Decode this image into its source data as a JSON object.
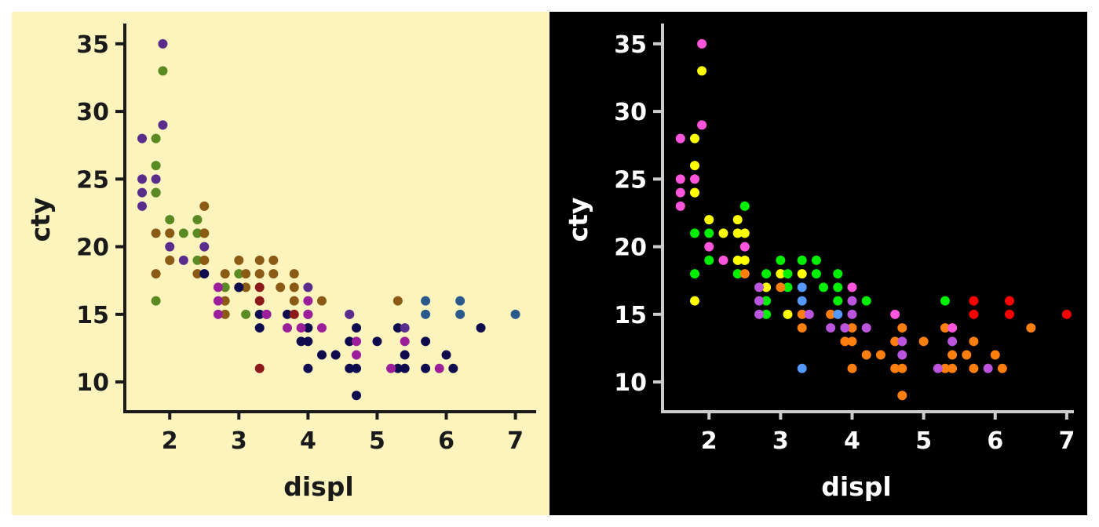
{
  "chart_data": [
    {
      "type": "scatter",
      "xlabel": "displ",
      "ylabel": "cty",
      "xlim": [
        1.35,
        7.3
      ],
      "ylim": [
        7.8,
        36.5
      ],
      "xticks": [
        2,
        3,
        4,
        5,
        6,
        7
      ],
      "yticks": [
        10,
        15,
        20,
        25,
        30,
        35
      ],
      "theme": {
        "background": "#fdf3bd",
        "axis": "#1a1a1a",
        "text": "#1a1a1a"
      },
      "points": [
        {
          "x": 1.6,
          "y": 28,
          "color": "#5a2d8c"
        },
        {
          "x": 1.6,
          "y": 25,
          "color": "#5a2d8c"
        },
        {
          "x": 1.6,
          "y": 24,
          "color": "#5a2d8c"
        },
        {
          "x": 1.6,
          "y": 23,
          "color": "#5a2d8c"
        },
        {
          "x": 1.8,
          "y": 25,
          "color": "#5a2d8c"
        },
        {
          "x": 1.8,
          "y": 24,
          "color": "#5a2d8c"
        },
        {
          "x": 1.9,
          "y": 35,
          "color": "#5a2d8c"
        },
        {
          "x": 1.9,
          "y": 29,
          "color": "#5a2d8c"
        },
        {
          "x": 2.0,
          "y": 20,
          "color": "#5a2d8c"
        },
        {
          "x": 2.2,
          "y": 19,
          "color": "#5a2d8c"
        },
        {
          "x": 2.5,
          "y": 20,
          "color": "#5a2d8c"
        },
        {
          "x": 1.9,
          "y": 33,
          "color": "#5b8a22"
        },
        {
          "x": 1.8,
          "y": 28,
          "color": "#5b8a22"
        },
        {
          "x": 1.8,
          "y": 26,
          "color": "#5b8a22"
        },
        {
          "x": 1.8,
          "y": 24,
          "color": "#5b8a22"
        },
        {
          "x": 1.8,
          "y": 16,
          "color": "#5b8a22"
        },
        {
          "x": 2.0,
          "y": 22,
          "color": "#5b8a22"
        },
        {
          "x": 2.0,
          "y": 21,
          "color": "#5b8a22"
        },
        {
          "x": 2.0,
          "y": 19,
          "color": "#5b8a22"
        },
        {
          "x": 2.2,
          "y": 21,
          "color": "#5b8a22"
        },
        {
          "x": 2.4,
          "y": 22,
          "color": "#5b8a22"
        },
        {
          "x": 2.4,
          "y": 21,
          "color": "#5b8a22"
        },
        {
          "x": 2.4,
          "y": 19,
          "color": "#5b8a22"
        },
        {
          "x": 2.5,
          "y": 21,
          "color": "#5b8a22"
        },
        {
          "x": 2.5,
          "y": 19,
          "color": "#5b8a22"
        },
        {
          "x": 2.8,
          "y": 17,
          "color": "#5b8a22"
        },
        {
          "x": 3.0,
          "y": 18,
          "color": "#5b8a22"
        },
        {
          "x": 3.1,
          "y": 15,
          "color": "#5b8a22"
        },
        {
          "x": 1.8,
          "y": 21,
          "color": "#8b5a14"
        },
        {
          "x": 1.8,
          "y": 18,
          "color": "#8b5a14"
        },
        {
          "x": 2.0,
          "y": 21,
          "color": "#8b5a14"
        },
        {
          "x": 2.0,
          "y": 19,
          "color": "#8b5a14"
        },
        {
          "x": 2.4,
          "y": 18,
          "color": "#8b5a14"
        },
        {
          "x": 2.5,
          "y": 23,
          "color": "#8b5a14"
        },
        {
          "x": 2.5,
          "y": 21,
          "color": "#8b5a14"
        },
        {
          "x": 2.5,
          "y": 19,
          "color": "#8b5a14"
        },
        {
          "x": 2.8,
          "y": 18,
          "color": "#8b5a14"
        },
        {
          "x": 2.8,
          "y": 16,
          "color": "#8b5a14"
        },
        {
          "x": 2.8,
          "y": 15,
          "color": "#8b5a14"
        },
        {
          "x": 3.0,
          "y": 19,
          "color": "#8b5a14"
        },
        {
          "x": 3.0,
          "y": 17,
          "color": "#8b5a14"
        },
        {
          "x": 3.1,
          "y": 18,
          "color": "#8b5a14"
        },
        {
          "x": 3.1,
          "y": 17,
          "color": "#8b5a14"
        },
        {
          "x": 3.3,
          "y": 19,
          "color": "#8b5a14"
        },
        {
          "x": 3.3,
          "y": 18,
          "color": "#8b5a14"
        },
        {
          "x": 3.5,
          "y": 19,
          "color": "#8b5a14"
        },
        {
          "x": 3.5,
          "y": 18,
          "color": "#8b5a14"
        },
        {
          "x": 3.6,
          "y": 17,
          "color": "#8b5a14"
        },
        {
          "x": 3.8,
          "y": 18,
          "color": "#8b5a14"
        },
        {
          "x": 3.8,
          "y": 17,
          "color": "#8b5a14"
        },
        {
          "x": 3.8,
          "y": 16,
          "color": "#8b5a14"
        },
        {
          "x": 4.2,
          "y": 16,
          "color": "#8b5a14"
        },
        {
          "x": 5.3,
          "y": 16,
          "color": "#8b5a14"
        },
        {
          "x": 2.5,
          "y": 18,
          "color": "#0e0c4f"
        },
        {
          "x": 3.0,
          "y": 17,
          "color": "#0e0c4f"
        },
        {
          "x": 3.3,
          "y": 15,
          "color": "#0e0c4f"
        },
        {
          "x": 3.3,
          "y": 14,
          "color": "#0e0c4f"
        },
        {
          "x": 3.4,
          "y": 15,
          "color": "#0e0c4f"
        },
        {
          "x": 3.7,
          "y": 15,
          "color": "#0e0c4f"
        },
        {
          "x": 3.9,
          "y": 13,
          "color": "#0e0c4f"
        },
        {
          "x": 4.0,
          "y": 15,
          "color": "#0e0c4f"
        },
        {
          "x": 4.0,
          "y": 14,
          "color": "#0e0c4f"
        },
        {
          "x": 4.0,
          "y": 13,
          "color": "#0e0c4f"
        },
        {
          "x": 4.0,
          "y": 11,
          "color": "#0e0c4f"
        },
        {
          "x": 4.2,
          "y": 12,
          "color": "#0e0c4f"
        },
        {
          "x": 4.4,
          "y": 12,
          "color": "#0e0c4f"
        },
        {
          "x": 4.6,
          "y": 13,
          "color": "#0e0c4f"
        },
        {
          "x": 4.6,
          "y": 11,
          "color": "#0e0c4f"
        },
        {
          "x": 4.7,
          "y": 14,
          "color": "#0e0c4f"
        },
        {
          "x": 4.7,
          "y": 11,
          "color": "#0e0c4f"
        },
        {
          "x": 4.7,
          "y": 9,
          "color": "#0e0c4f"
        },
        {
          "x": 5.0,
          "y": 13,
          "color": "#0e0c4f"
        },
        {
          "x": 5.3,
          "y": 14,
          "color": "#0e0c4f"
        },
        {
          "x": 5.3,
          "y": 11,
          "color": "#0e0c4f"
        },
        {
          "x": 5.4,
          "y": 12,
          "color": "#0e0c4f"
        },
        {
          "x": 5.4,
          "y": 11,
          "color": "#0e0c4f"
        },
        {
          "x": 5.7,
          "y": 13,
          "color": "#0e0c4f"
        },
        {
          "x": 5.7,
          "y": 11,
          "color": "#0e0c4f"
        },
        {
          "x": 6.0,
          "y": 12,
          "color": "#0e0c4f"
        },
        {
          "x": 6.1,
          "y": 11,
          "color": "#0e0c4f"
        },
        {
          "x": 6.5,
          "y": 14,
          "color": "#0e0c4f"
        },
        {
          "x": 2.7,
          "y": 17,
          "color": "#9b1e9b"
        },
        {
          "x": 2.7,
          "y": 16,
          "color": "#9b1e9b"
        },
        {
          "x": 2.7,
          "y": 15,
          "color": "#9b1e9b"
        },
        {
          "x": 3.4,
          "y": 15,
          "color": "#9b1e9b"
        },
        {
          "x": 3.7,
          "y": 14,
          "color": "#9b1e9b"
        },
        {
          "x": 3.9,
          "y": 14,
          "color": "#9b1e9b"
        },
        {
          "x": 4.0,
          "y": 16,
          "color": "#9b1e9b"
        },
        {
          "x": 4.0,
          "y": 15,
          "color": "#9b1e9b"
        },
        {
          "x": 4.2,
          "y": 14,
          "color": "#9b1e9b"
        },
        {
          "x": 4.6,
          "y": 15,
          "color": "#9b1e9b"
        },
        {
          "x": 4.7,
          "y": 13,
          "color": "#9b1e9b"
        },
        {
          "x": 4.7,
          "y": 12,
          "color": "#9b1e9b"
        },
        {
          "x": 5.2,
          "y": 11,
          "color": "#9b1e9b"
        },
        {
          "x": 5.4,
          "y": 13,
          "color": "#9b1e9b"
        },
        {
          "x": 5.9,
          "y": 11,
          "color": "#9b1e9b"
        },
        {
          "x": 3.3,
          "y": 17,
          "color": "#8c1a1a"
        },
        {
          "x": 3.3,
          "y": 16,
          "color": "#8c1a1a"
        },
        {
          "x": 3.3,
          "y": 11,
          "color": "#8c1a1a"
        },
        {
          "x": 3.8,
          "y": 15,
          "color": "#8c1a1a"
        },
        {
          "x": 4.0,
          "y": 17,
          "color": "#5a2d8c"
        },
        {
          "x": 4.6,
          "y": 15,
          "color": "#5a2d8c"
        },
        {
          "x": 5.4,
          "y": 14,
          "color": "#5a2d8c"
        },
        {
          "x": 5.7,
          "y": 16,
          "color": "#2a5a8c"
        },
        {
          "x": 5.7,
          "y": 15,
          "color": "#2a5a8c"
        },
        {
          "x": 6.2,
          "y": 16,
          "color": "#2a5a8c"
        },
        {
          "x": 6.2,
          "y": 15,
          "color": "#2a5a8c"
        },
        {
          "x": 7.0,
          "y": 15,
          "color": "#2a5a8c"
        }
      ]
    },
    {
      "type": "scatter",
      "xlabel": "displ",
      "ylabel": "cty",
      "xlim": [
        1.35,
        7.1
      ],
      "ylim": [
        7.8,
        36.5
      ],
      "xticks": [
        2,
        3,
        4,
        5,
        6,
        7
      ],
      "yticks": [
        10,
        15,
        20,
        25,
        30,
        35
      ],
      "theme": {
        "background": "#000000",
        "axis": "#cccccc",
        "text": "#ffffff"
      },
      "points": [
        {
          "x": 1.6,
          "y": 28,
          "color": "#ff55dd"
        },
        {
          "x": 1.6,
          "y": 25,
          "color": "#ff55dd"
        },
        {
          "x": 1.6,
          "y": 24,
          "color": "#ff55dd"
        },
        {
          "x": 1.6,
          "y": 23,
          "color": "#ff55dd"
        },
        {
          "x": 1.8,
          "y": 25,
          "color": "#ff55dd"
        },
        {
          "x": 1.8,
          "y": 24,
          "color": "#ff55dd"
        },
        {
          "x": 1.9,
          "y": 35,
          "color": "#ff55dd"
        },
        {
          "x": 1.9,
          "y": 29,
          "color": "#ff55dd"
        },
        {
          "x": 2.0,
          "y": 20,
          "color": "#ff55dd"
        },
        {
          "x": 2.2,
          "y": 19,
          "color": "#ff55dd"
        },
        {
          "x": 2.5,
          "y": 20,
          "color": "#ff55dd"
        },
        {
          "x": 1.9,
          "y": 33,
          "color": "#ffff00"
        },
        {
          "x": 1.8,
          "y": 28,
          "color": "#ffff00"
        },
        {
          "x": 1.8,
          "y": 26,
          "color": "#ffff00"
        },
        {
          "x": 1.8,
          "y": 24,
          "color": "#ffff00"
        },
        {
          "x": 1.8,
          "y": 16,
          "color": "#ffff00"
        },
        {
          "x": 2.0,
          "y": 22,
          "color": "#ffff00"
        },
        {
          "x": 2.2,
          "y": 21,
          "color": "#ffff00"
        },
        {
          "x": 2.4,
          "y": 22,
          "color": "#ffff00"
        },
        {
          "x": 2.4,
          "y": 21,
          "color": "#ffff00"
        },
        {
          "x": 2.4,
          "y": 19,
          "color": "#ffff00"
        },
        {
          "x": 2.5,
          "y": 21,
          "color": "#ffff00"
        },
        {
          "x": 2.5,
          "y": 19,
          "color": "#ffff00"
        },
        {
          "x": 2.8,
          "y": 17,
          "color": "#ffff00"
        },
        {
          "x": 3.0,
          "y": 18,
          "color": "#ffff00"
        },
        {
          "x": 3.1,
          "y": 15,
          "color": "#ffff00"
        },
        {
          "x": 3.3,
          "y": 18,
          "color": "#ffff00"
        },
        {
          "x": 1.8,
          "y": 21,
          "color": "#00ee00"
        },
        {
          "x": 1.8,
          "y": 18,
          "color": "#00ee00"
        },
        {
          "x": 2.0,
          "y": 21,
          "color": "#00ee00"
        },
        {
          "x": 2.0,
          "y": 19,
          "color": "#00ee00"
        },
        {
          "x": 2.4,
          "y": 18,
          "color": "#00ee00"
        },
        {
          "x": 2.5,
          "y": 23,
          "color": "#00ee00"
        },
        {
          "x": 2.8,
          "y": 18,
          "color": "#00ee00"
        },
        {
          "x": 2.8,
          "y": 16,
          "color": "#00ee00"
        },
        {
          "x": 2.8,
          "y": 15,
          "color": "#00ee00"
        },
        {
          "x": 3.0,
          "y": 19,
          "color": "#00ee00"
        },
        {
          "x": 3.1,
          "y": 18,
          "color": "#00ee00"
        },
        {
          "x": 3.1,
          "y": 17,
          "color": "#00ee00"
        },
        {
          "x": 3.3,
          "y": 19,
          "color": "#00ee00"
        },
        {
          "x": 3.5,
          "y": 19,
          "color": "#00ee00"
        },
        {
          "x": 3.5,
          "y": 18,
          "color": "#00ee00"
        },
        {
          "x": 3.6,
          "y": 17,
          "color": "#00ee00"
        },
        {
          "x": 3.8,
          "y": 18,
          "color": "#00ee00"
        },
        {
          "x": 3.8,
          "y": 17,
          "color": "#00ee00"
        },
        {
          "x": 3.8,
          "y": 16,
          "color": "#00ee00"
        },
        {
          "x": 4.2,
          "y": 16,
          "color": "#00ee00"
        },
        {
          "x": 5.3,
          "y": 16,
          "color": "#00ee00"
        },
        {
          "x": 2.5,
          "y": 18,
          "color": "#ff7f0e"
        },
        {
          "x": 3.0,
          "y": 17,
          "color": "#ff7f0e"
        },
        {
          "x": 3.3,
          "y": 15,
          "color": "#ff7f0e"
        },
        {
          "x": 3.3,
          "y": 14,
          "color": "#ff7f0e"
        },
        {
          "x": 3.7,
          "y": 15,
          "color": "#ff7f0e"
        },
        {
          "x": 3.9,
          "y": 13,
          "color": "#ff7f0e"
        },
        {
          "x": 4.0,
          "y": 14,
          "color": "#ff7f0e"
        },
        {
          "x": 4.0,
          "y": 13,
          "color": "#ff7f0e"
        },
        {
          "x": 4.0,
          "y": 11,
          "color": "#ff7f0e"
        },
        {
          "x": 4.2,
          "y": 12,
          "color": "#ff7f0e"
        },
        {
          "x": 4.4,
          "y": 12,
          "color": "#ff7f0e"
        },
        {
          "x": 4.6,
          "y": 13,
          "color": "#ff7f0e"
        },
        {
          "x": 4.6,
          "y": 11,
          "color": "#ff7f0e"
        },
        {
          "x": 4.7,
          "y": 14,
          "color": "#ff7f0e"
        },
        {
          "x": 4.7,
          "y": 11,
          "color": "#ff7f0e"
        },
        {
          "x": 4.7,
          "y": 9,
          "color": "#ff7f0e"
        },
        {
          "x": 5.0,
          "y": 13,
          "color": "#ff7f0e"
        },
        {
          "x": 5.3,
          "y": 14,
          "color": "#ff7f0e"
        },
        {
          "x": 5.3,
          "y": 11,
          "color": "#ff7f0e"
        },
        {
          "x": 5.4,
          "y": 12,
          "color": "#ff7f0e"
        },
        {
          "x": 5.4,
          "y": 11,
          "color": "#ff7f0e"
        },
        {
          "x": 5.7,
          "y": 13,
          "color": "#ff7f0e"
        },
        {
          "x": 5.7,
          "y": 11,
          "color": "#ff7f0e"
        },
        {
          "x": 6.0,
          "y": 12,
          "color": "#ff7f0e"
        },
        {
          "x": 6.1,
          "y": 11,
          "color": "#ff7f0e"
        },
        {
          "x": 6.5,
          "y": 14,
          "color": "#ff7f0e"
        },
        {
          "x": 5.6,
          "y": 12,
          "color": "#ff7f0e"
        },
        {
          "x": 2.7,
          "y": 17,
          "color": "#bb55dd"
        },
        {
          "x": 2.7,
          "y": 16,
          "color": "#bb55dd"
        },
        {
          "x": 2.7,
          "y": 15,
          "color": "#bb55dd"
        },
        {
          "x": 3.4,
          "y": 15,
          "color": "#bb55dd"
        },
        {
          "x": 3.7,
          "y": 14,
          "color": "#bb55dd"
        },
        {
          "x": 3.9,
          "y": 14,
          "color": "#bb55dd"
        },
        {
          "x": 4.0,
          "y": 16,
          "color": "#bb55dd"
        },
        {
          "x": 4.0,
          "y": 15,
          "color": "#bb55dd"
        },
        {
          "x": 4.2,
          "y": 14,
          "color": "#bb55dd"
        },
        {
          "x": 4.7,
          "y": 13,
          "color": "#bb55dd"
        },
        {
          "x": 4.7,
          "y": 12,
          "color": "#bb55dd"
        },
        {
          "x": 5.2,
          "y": 11,
          "color": "#bb55dd"
        },
        {
          "x": 5.4,
          "y": 13,
          "color": "#bb55dd"
        },
        {
          "x": 5.9,
          "y": 11,
          "color": "#bb55dd"
        },
        {
          "x": 4.0,
          "y": 17,
          "color": "#ff55dd"
        },
        {
          "x": 4.6,
          "y": 15,
          "color": "#ff55dd"
        },
        {
          "x": 5.4,
          "y": 14,
          "color": "#ff55dd"
        },
        {
          "x": 3.3,
          "y": 17,
          "color": "#5599ff"
        },
        {
          "x": 3.3,
          "y": 16,
          "color": "#5599ff"
        },
        {
          "x": 3.3,
          "y": 11,
          "color": "#5599ff"
        },
        {
          "x": 3.8,
          "y": 15,
          "color": "#5599ff"
        },
        {
          "x": 5.7,
          "y": 16,
          "color": "#ff0000"
        },
        {
          "x": 5.7,
          "y": 15,
          "color": "#ff0000"
        },
        {
          "x": 6.2,
          "y": 16,
          "color": "#ff0000"
        },
        {
          "x": 6.2,
          "y": 15,
          "color": "#ff0000"
        },
        {
          "x": 7.0,
          "y": 15,
          "color": "#ff0000"
        }
      ]
    }
  ]
}
